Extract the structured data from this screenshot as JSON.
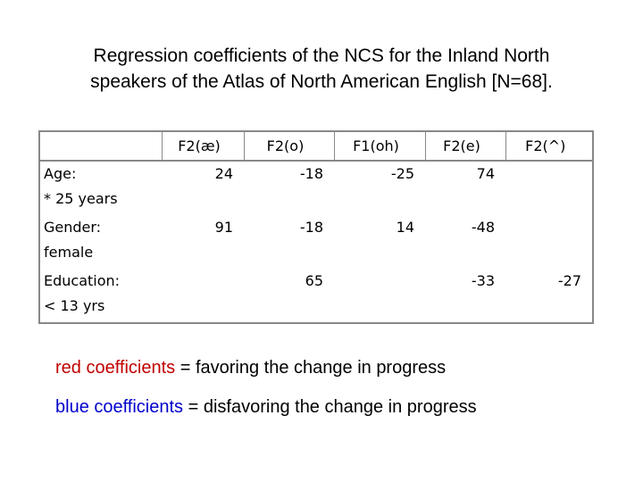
{
  "title": [
    "Regression coefficients of the NCS for the Inland North",
    "speakers of the Atlas of North American English [N=68]."
  ],
  "table": {
    "header": [
      "F2(æ)",
      "F2(o)",
      "F1(oh)",
      "F2(e)",
      "F2(^)"
    ],
    "rows": [
      {
        "label": "Age:\n* 25 years",
        "values": [
          24,
          -18,
          -25,
          74,
          null
        ]
      },
      {
        "label": "Gender:\nfemale",
        "values": [
          91,
          -18,
          14,
          -48,
          null
        ]
      },
      {
        "label": "Education:\n< 13 yrs",
        "values": [
          null,
          65,
          null,
          -33,
          -27
        ]
      }
    ]
  },
  "legend": [
    {
      "term": "red coefficients",
      "color": "#c00000",
      "text": " = favoring the change in progress"
    },
    {
      "term": "blue coefficients",
      "color": "#0000cc",
      "text": " = disfavoring the change in progress"
    }
  ]
}
